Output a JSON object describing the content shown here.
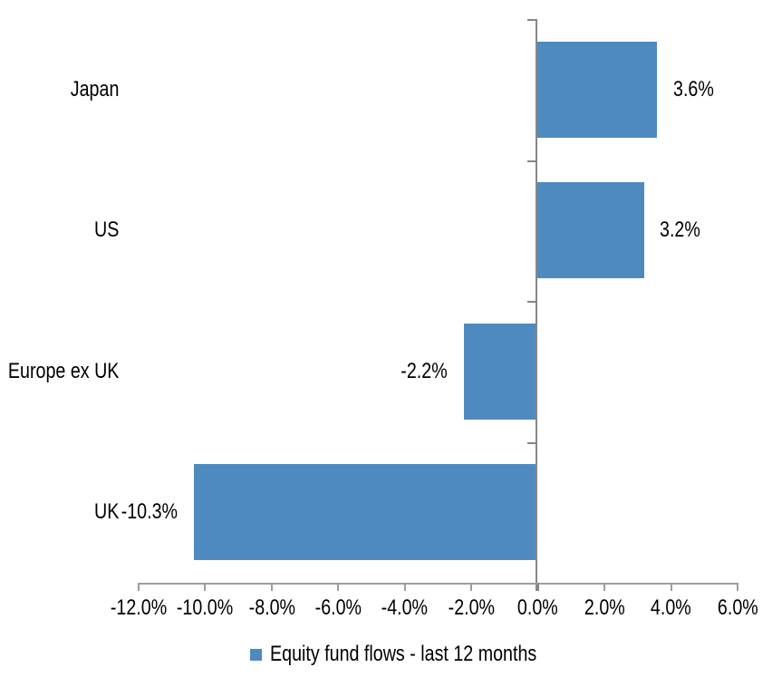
{
  "chart_data": {
    "type": "bar",
    "orientation": "horizontal",
    "title": "",
    "categories": [
      "Japan",
      "US",
      "Europe ex UK",
      "UK"
    ],
    "series": [
      {
        "name": "Equity fund flows - last 12 months",
        "values": [
          3.6,
          3.2,
          -2.2,
          -10.3
        ],
        "data_labels": [
          "3.6%",
          "3.2%",
          "-2.2%",
          "-10.3%"
        ]
      }
    ],
    "xlim": [
      -12,
      6
    ],
    "x_ticks": [
      -12,
      -10,
      -8,
      -6,
      -4,
      -2,
      0,
      2,
      4,
      6
    ],
    "x_tick_labels": [
      "-12.0%",
      "-10.0%",
      "-8.0%",
      "-6.0%",
      "-4.0%",
      "-2.0%",
      "0.0%",
      "2.0%",
      "4.0%",
      "6.0%"
    ],
    "grid": false,
    "legend_position": "bottom-center",
    "data_label_position": "outside-end"
  },
  "legend": {
    "label": "Equity fund flows - last 12 months"
  },
  "colors": {
    "bar": "#4e8abf",
    "x_axis": "#9d9d9d",
    "y_axis": "#868686",
    "text": "#000000",
    "background": "#ffffff"
  }
}
